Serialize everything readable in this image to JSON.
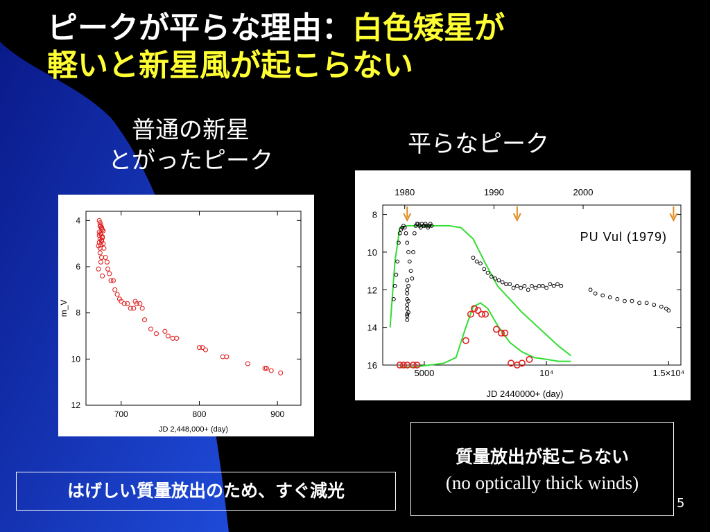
{
  "title": {
    "line1_white": "ピークが平らな理由：",
    "line1_yellow": "白色矮星が",
    "line2_yellow": "軽いと新星風が起こらない"
  },
  "left_label": {
    "line1": "普通の新星",
    "line2": "とがったピーク"
  },
  "right_label": "平らなピーク",
  "box_left": "はげしい質量放出のため、すぐ減光",
  "box_right": {
    "line1": "質量放出が起こらない",
    "line2": "(no optically thick winds)"
  },
  "page_number": "5",
  "colors": {
    "title_yellow": "#ffff33",
    "data_red": "#e02020",
    "model_green": "#33dd33",
    "arrow_orange": "#e08a1e"
  },
  "chart_data": [
    {
      "type": "scatter",
      "title": "",
      "xlabel": "JD 2,448,000+ (day)",
      "ylabel": "m_V",
      "xlim": [
        655,
        930
      ],
      "ylim": [
        12,
        3.6
      ],
      "y_inverted": true,
      "xticks": [
        700,
        800,
        900
      ],
      "yticks": [
        4,
        6,
        8,
        10,
        12
      ],
      "series": [
        {
          "x": [
            672,
            673,
            674,
            675,
            676,
            672,
            674,
            676,
            673,
            675,
            677,
            671,
            673,
            675,
            674,
            676,
            672,
            674,
            677,
            673,
            675,
            671,
            676,
            674,
            673,
            672,
            675,
            678,
            680,
            682,
            683,
            685,
            687,
            690,
            692,
            695,
            698,
            700,
            704,
            708,
            712,
            716,
            718,
            720,
            724,
            727,
            730,
            738,
            745,
            756,
            760,
            766,
            771,
            800,
            804,
            808,
            830,
            835,
            862,
            884,
            886,
            892,
            904
          ],
          "y": [
            4.0,
            4.1,
            4.2,
            4.3,
            4.4,
            4.5,
            4.6,
            4.7,
            4.8,
            4.9,
            5.0,
            5.1,
            5.2,
            4.35,
            4.55,
            4.75,
            4.95,
            5.05,
            4.45,
            5.4,
            5.6,
            6.1,
            6.4,
            5.8,
            4.25,
            4.65,
            4.85,
            5.2,
            5.6,
            5.8,
            6.1,
            6.3,
            6.6,
            6.6,
            7.0,
            7.2,
            7.4,
            7.5,
            7.6,
            7.6,
            7.8,
            7.8,
            7.5,
            7.6,
            7.6,
            7.8,
            8.3,
            8.7,
            8.9,
            8.8,
            9.0,
            9.1,
            9.1,
            9.5,
            9.5,
            9.6,
            9.9,
            9.9,
            10.2,
            10.4,
            10.4,
            10.5,
            10.6
          ]
        }
      ]
    },
    {
      "type": "scatter",
      "title": "PU Vul (1979)",
      "xlabel": "JD 2440000+ (day)",
      "ylabel": "",
      "xlim": [
        3300,
        15500
      ],
      "ylim": [
        16,
        7.5
      ],
      "y_inverted": true,
      "xticks": [
        "5000",
        "10⁴",
        "1.5×10⁴"
      ],
      "xtick_values": [
        5000,
        10000,
        15000
      ],
      "yticks": [
        8,
        10,
        12,
        14,
        16
      ],
      "top_axis_labels": [
        "1980",
        "1990",
        "2000"
      ],
      "top_axis_x": [
        4200,
        7850,
        11500
      ],
      "arrow_x": [
        4300,
        8800,
        15200
      ],
      "series": [
        {
          "name": "observed (black)",
          "x": [
            3750,
            3800,
            3850,
            3900,
            3950,
            4000,
            4050,
            4100,
            4150,
            4200,
            4250,
            4300,
            4350,
            4400,
            4450,
            4500,
            4550,
            4600,
            4650,
            4700,
            4750,
            4800,
            4850,
            4900,
            4950,
            5000,
            5050,
            5100,
            5150,
            5200,
            5250,
            5300,
            7000,
            7150,
            7300,
            7450,
            7600,
            7750,
            7900,
            8050,
            8200,
            8350,
            8500,
            8650,
            8800,
            8950,
            9100,
            9250,
            9400,
            9550,
            9700,
            9850,
            10000,
            10150,
            10300,
            10450,
            10600,
            4300,
            4300,
            4300,
            4300,
            4300,
            4300,
            4300,
            4300,
            4300,
            4350,
            4350,
            4350,
            11800,
            12000,
            12300,
            12600,
            12900,
            13200,
            13500,
            13800,
            14100,
            14400,
            14700,
            14900,
            15000
          ],
          "y": [
            12.5,
            11.8,
            11.2,
            10.5,
            9.5,
            9.0,
            8.8,
            8.7,
            8.6,
            8.7,
            9.0,
            9.5,
            10.0,
            10.5,
            11.0,
            11.4,
            10.0,
            9.0,
            8.6,
            8.5,
            8.5,
            8.6,
            8.7,
            8.5,
            8.6,
            8.6,
            8.5,
            8.6,
            8.7,
            8.6,
            8.5,
            8.6,
            10.3,
            10.5,
            10.6,
            10.9,
            11.1,
            11.3,
            11.4,
            11.5,
            11.6,
            11.7,
            11.7,
            11.9,
            11.8,
            11.9,
            11.8,
            12.0,
            11.8,
            11.9,
            11.8,
            11.8,
            11.9,
            11.7,
            11.8,
            11.7,
            11.8,
            11.5,
            12.0,
            12.5,
            13.0,
            13.3,
            13.6,
            12.2,
            12.8,
            13.4,
            11.8,
            12.6,
            13.2,
            12.0,
            12.2,
            12.3,
            12.4,
            12.5,
            12.6,
            12.6,
            12.7,
            12.7,
            12.8,
            12.9,
            13.0,
            13.1
          ]
        },
        {
          "name": "observed (red)",
          "x": [
            4000,
            4150,
            4300,
            4550,
            4700,
            6700,
            6900,
            7050,
            7200,
            7350,
            7500,
            7950,
            8150,
            8300,
            8550,
            8800,
            9000,
            9300
          ],
          "y": [
            16.0,
            16.0,
            16.0,
            16.0,
            16.0,
            14.7,
            13.3,
            13.0,
            13.1,
            13.3,
            13.3,
            14.1,
            14.3,
            14.3,
            15.9,
            16.0,
            15.9,
            15.7
          ]
        },
        {
          "name": "model upper (green)",
          "x": [
            3600,
            3800,
            4000,
            4300,
            4600,
            5000,
            5500,
            6000,
            6500,
            7000,
            7500,
            8000,
            8500,
            9000,
            9500,
            10000,
            10500,
            11000
          ],
          "y": [
            14.0,
            10.5,
            8.7,
            8.6,
            8.6,
            8.6,
            8.6,
            8.6,
            8.7,
            9.3,
            10.6,
            11.8,
            12.5,
            13.2,
            13.8,
            14.4,
            15.0,
            15.5
          ]
        },
        {
          "name": "model lower (green)",
          "x": [
            4000,
            4600,
            5200,
            5800,
            6300,
            6700,
            7000,
            7300,
            7600,
            8000,
            8500,
            9000,
            9500,
            10000,
            10500,
            11000
          ],
          "y": [
            16.1,
            16.1,
            16.0,
            15.9,
            15.6,
            14.0,
            12.9,
            12.7,
            13.0,
            13.9,
            14.8,
            15.3,
            15.6,
            15.7,
            15.8,
            15.8
          ]
        }
      ]
    }
  ]
}
